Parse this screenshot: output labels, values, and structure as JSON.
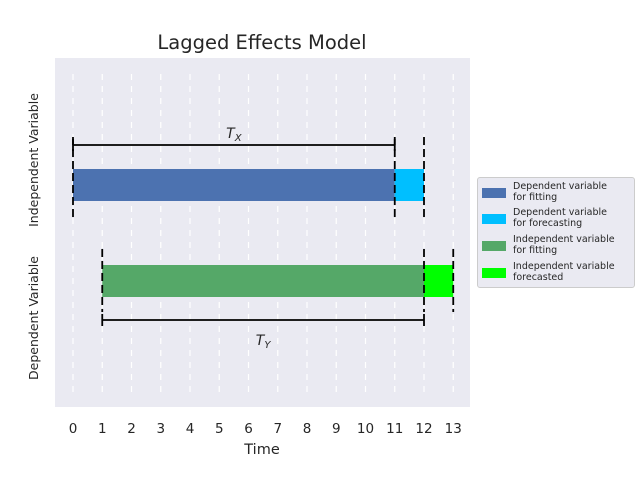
{
  "diagram": {
    "title": "Lagged Effects Model",
    "xlabel": "Time",
    "ylabel_top": "Independent Variable",
    "ylabel_bottom": "Dependent Variable",
    "x_ticks": [
      0,
      1,
      2,
      3,
      4,
      5,
      6,
      7,
      8,
      9,
      10,
      11,
      12,
      13
    ],
    "x_range": [
      -0.6,
      13.6
    ],
    "grid_lines_at": [
      0,
      1,
      2,
      3,
      4,
      5,
      6,
      7,
      8,
      9,
      10,
      11,
      12,
      13
    ],
    "bars": [
      {
        "name": "dep-fit-bar",
        "row": "upper",
        "start": 0,
        "end": 11,
        "color": "#4c72b0"
      },
      {
        "name": "dep-forecast-bar",
        "row": "upper",
        "start": 11,
        "end": 12,
        "color": "#00bfff"
      },
      {
        "name": "indep-fit-bar",
        "row": "lower",
        "start": 1,
        "end": 12,
        "color": "#55a868"
      },
      {
        "name": "indep-forecast-bar",
        "row": "lower",
        "start": 12,
        "end": 13,
        "color": "#00ff00"
      }
    ],
    "marker_lines": [
      {
        "row": "upper",
        "x": 0
      },
      {
        "row": "upper",
        "x": 11
      },
      {
        "row": "upper",
        "x": 12
      },
      {
        "row": "lower",
        "x": 1
      },
      {
        "row": "lower",
        "x": 12
      },
      {
        "row": "lower",
        "x": 13
      }
    ],
    "spans": [
      {
        "name": "tx-span",
        "row": "upper",
        "start": 0,
        "end": 11,
        "label": "T",
        "sub": "X"
      },
      {
        "name": "ty-span",
        "row": "lower",
        "start": 1,
        "end": 12,
        "label": "T",
        "sub": "Y"
      }
    ],
    "colors": {
      "background": "#eaeaf2",
      "grid": "#ffffff",
      "line": "#000000"
    }
  },
  "legend": {
    "items": [
      {
        "label": "Dependent variable\nfor fitting",
        "color": "#4c72b0"
      },
      {
        "label": "Dependent variable\nfor forecasting",
        "color": "#00bfff"
      },
      {
        "label": "Independent variable\nfor fitting",
        "color": "#55a868"
      },
      {
        "label": "Independent variable\nforecasted",
        "color": "#00ff00"
      }
    ]
  }
}
